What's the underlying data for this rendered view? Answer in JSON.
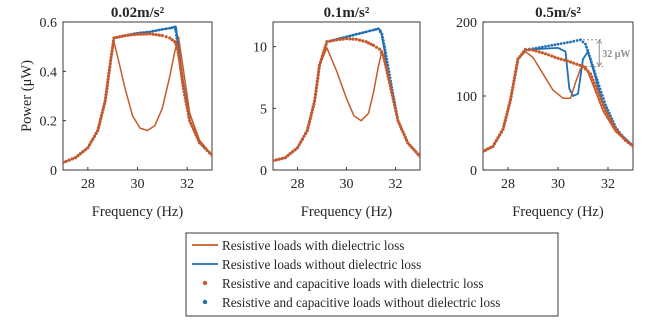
{
  "colors": {
    "with_loss": "#C75A2C",
    "without_loss": "#1F6FB4",
    "axis": "#262626",
    "annotation": "#8C8C8C"
  },
  "legend": [
    {
      "label": "Resistive loads with dielectric loss",
      "style": "line",
      "color": "#C75A2C"
    },
    {
      "label": "Resistive loads without dielectric loss",
      "style": "line",
      "color": "#1F6FB4"
    },
    {
      "label": "Resistive and capacitive loads with dielectric loss",
      "style": "dot",
      "color": "#C75A2C"
    },
    {
      "label": "Resistive and capacitive loads without dielectric loss",
      "style": "dot",
      "color": "#1F6FB4"
    }
  ],
  "chart_data": [
    {
      "type": "line",
      "title": "0.02m/s²",
      "xlabel": "Frequency (Hz)",
      "ylabel": "Power (μW)",
      "xlim": [
        27,
        33
      ],
      "ylim": [
        0,
        0.6
      ],
      "xticks": [
        "28",
        "30",
        "32"
      ],
      "xtick_values": [
        28,
        30,
        32
      ],
      "yticks": [
        "0",
        "0.2",
        "0.4",
        "0.6"
      ],
      "ytick_values": [
        0,
        0.2,
        0.4,
        0.6
      ],
      "series": [
        {
          "name": "Resistive loads with dielectric loss",
          "x": [
            27.0,
            27.5,
            28.0,
            28.4,
            28.7,
            28.9,
            29.05,
            29.2,
            29.5,
            29.8,
            30.1,
            30.4,
            30.7,
            31.0,
            31.3,
            31.5,
            31.65,
            31.8,
            32.1,
            32.5,
            33.0
          ],
          "y": [
            0.03,
            0.05,
            0.09,
            0.16,
            0.28,
            0.43,
            0.52,
            0.46,
            0.33,
            0.22,
            0.17,
            0.16,
            0.18,
            0.25,
            0.38,
            0.48,
            0.54,
            0.44,
            0.23,
            0.12,
            0.06
          ]
        },
        {
          "name": "Resistive loads without dielectric loss",
          "x": [
            27.0,
            27.5,
            28.0,
            28.4,
            28.7,
            28.9,
            29.05,
            29.5,
            30.0,
            30.5,
            31.0,
            31.3,
            31.5,
            31.55,
            31.65,
            31.8,
            32.1,
            32.5,
            33.0
          ],
          "y": [
            0.03,
            0.05,
            0.09,
            0.16,
            0.28,
            0.43,
            0.535,
            0.545,
            0.555,
            0.56,
            0.57,
            0.575,
            0.58,
            0.58,
            0.5,
            0.38,
            0.2,
            0.11,
            0.06
          ]
        },
        {
          "name": "Resistive and capacitive loads with dielectric loss",
          "x": [
            27.0,
            27.5,
            28.0,
            28.4,
            28.7,
            28.9,
            29.05,
            29.5,
            30.0,
            30.5,
            31.0,
            31.3,
            31.5,
            31.6,
            31.7,
            31.85,
            32.1,
            32.5,
            33.0
          ],
          "y": [
            0.03,
            0.05,
            0.09,
            0.16,
            0.28,
            0.43,
            0.535,
            0.545,
            0.55,
            0.552,
            0.545,
            0.535,
            0.52,
            0.5,
            0.44,
            0.33,
            0.2,
            0.11,
            0.06
          ]
        },
        {
          "name": "Resistive and capacitive loads without dielectric loss",
          "x": [
            27.0,
            27.5,
            28.0,
            28.4,
            28.7,
            28.9,
            29.05,
            29.5,
            30.0,
            30.5,
            31.0,
            31.3,
            31.5,
            31.55,
            31.65,
            31.8,
            32.1,
            32.5,
            33.0
          ],
          "y": [
            0.03,
            0.05,
            0.09,
            0.16,
            0.28,
            0.43,
            0.535,
            0.545,
            0.555,
            0.56,
            0.57,
            0.575,
            0.58,
            0.56,
            0.48,
            0.37,
            0.2,
            0.11,
            0.06
          ]
        }
      ]
    },
    {
      "type": "line",
      "title": "0.1m/s²",
      "xlabel": "Frequency (Hz)",
      "ylabel": "",
      "xlim": [
        27,
        33
      ],
      "ylim": [
        0,
        12
      ],
      "xticks": [
        "28",
        "30",
        "32"
      ],
      "xtick_values": [
        28,
        30,
        32
      ],
      "yticks": [
        "0",
        "5",
        "10"
      ],
      "ytick_values": [
        0,
        5,
        10
      ],
      "series": [
        {
          "name": "Resistive loads with dielectric loss",
          "x": [
            27.0,
            27.5,
            28.0,
            28.4,
            28.7,
            28.9,
            29.2,
            29.6,
            30.0,
            30.3,
            30.6,
            30.9,
            31.1,
            31.3,
            31.45,
            31.7,
            32.1,
            32.5,
            33.0
          ],
          "y": [
            0.75,
            1.0,
            1.8,
            3.2,
            5.6,
            8.5,
            9.9,
            8.0,
            5.8,
            4.4,
            4.0,
            4.6,
            6.3,
            8.4,
            9.7,
            7.6,
            4.0,
            2.2,
            1.1
          ]
        },
        {
          "name": "Resistive loads without dielectric loss",
          "x": [
            27.0,
            27.5,
            28.0,
            28.4,
            28.7,
            28.9,
            29.2,
            29.6,
            30.0,
            30.4,
            30.8,
            31.1,
            31.3,
            31.4,
            31.55,
            31.7,
            32.1,
            32.5,
            33.0
          ],
          "y": [
            0.75,
            1.0,
            1.8,
            3.2,
            5.6,
            8.5,
            10.4,
            10.6,
            10.8,
            11.0,
            11.2,
            11.35,
            11.45,
            11.3,
            9.7,
            7.6,
            4.0,
            2.2,
            1.1
          ]
        },
        {
          "name": "Resistive and capacitive loads with dielectric loss",
          "x": [
            27.0,
            27.5,
            28.0,
            28.4,
            28.7,
            28.9,
            29.2,
            29.6,
            30.0,
            30.4,
            30.8,
            31.1,
            31.35,
            31.5,
            31.7,
            32.1,
            32.5,
            33.0
          ],
          "y": [
            0.75,
            1.0,
            1.8,
            3.2,
            5.6,
            8.5,
            10.4,
            10.55,
            10.65,
            10.6,
            10.4,
            10.1,
            9.8,
            9.3,
            7.6,
            4.0,
            2.2,
            1.1
          ]
        },
        {
          "name": "Resistive and capacitive loads without dielectric loss",
          "x": [
            27.0,
            27.5,
            28.0,
            28.4,
            28.7,
            28.9,
            29.2,
            29.6,
            30.0,
            30.4,
            30.8,
            31.1,
            31.3,
            31.45,
            31.6,
            31.8,
            32.1,
            32.5,
            33.0
          ],
          "y": [
            0.75,
            1.0,
            1.8,
            3.2,
            5.6,
            8.5,
            10.4,
            10.6,
            10.8,
            11.0,
            11.2,
            11.35,
            11.45,
            11.0,
            9.5,
            7.2,
            4.0,
            2.2,
            1.1
          ]
        }
      ]
    },
    {
      "type": "line",
      "title": "0.5m/s²",
      "xlabel": "Frequency (Hz)",
      "ylabel": "",
      "xlim": [
        27,
        33
      ],
      "ylim": [
        0,
        200
      ],
      "xticks": [
        "28",
        "30",
        "32"
      ],
      "xtick_values": [
        28,
        30,
        32
      ],
      "yticks": [
        "0",
        "100",
        "200"
      ],
      "ytick_values": [
        0,
        100,
        200
      ],
      "annotation": "32 μW",
      "series": [
        {
          "name": "Resistive loads with dielectric loss",
          "x": [
            27.0,
            27.4,
            27.8,
            28.1,
            28.4,
            28.7,
            29.0,
            29.4,
            29.8,
            30.2,
            30.5,
            30.7,
            30.9,
            31.1,
            31.4,
            31.8,
            32.3,
            33.0
          ],
          "y": [
            25,
            32,
            55,
            95,
            150,
            160,
            152,
            130,
            108,
            97,
            97,
            118,
            137,
            140,
            115,
            80,
            52,
            32
          ]
        },
        {
          "name": "Resistive loads without dielectric loss",
          "x": [
            27.0,
            27.4,
            27.8,
            28.1,
            28.4,
            28.7,
            29.0,
            29.5,
            30.0,
            30.3,
            30.45,
            30.6,
            30.8,
            31.0,
            31.2,
            31.5,
            31.8,
            32.3,
            33.0
          ],
          "y": [
            25,
            32,
            55,
            95,
            150,
            162,
            163,
            164,
            165,
            160,
            110,
            100,
            103,
            150,
            160,
            125,
            88,
            55,
            33
          ]
        },
        {
          "name": "Resistive and capacitive loads with dielectric loss",
          "x": [
            27.0,
            27.4,
            27.8,
            28.1,
            28.4,
            28.7,
            29.0,
            29.5,
            30.0,
            30.5,
            31.0,
            31.3,
            31.6,
            31.9,
            32.3,
            32.7,
            33.0
          ],
          "y": [
            25,
            32,
            55,
            95,
            150,
            163,
            162,
            157,
            151,
            146,
            140,
            130,
            105,
            80,
            55,
            40,
            32
          ]
        },
        {
          "name": "Resistive and capacitive loads without dielectric loss",
          "x": [
            27.0,
            27.4,
            27.8,
            28.1,
            28.4,
            28.7,
            29.0,
            29.5,
            30.0,
            30.5,
            30.9,
            31.1,
            31.3,
            31.6,
            31.9,
            32.3,
            32.7,
            33.0
          ],
          "y": [
            25,
            32,
            55,
            95,
            150,
            163,
            164,
            167,
            170,
            173,
            176,
            170,
            150,
            118,
            88,
            58,
            40,
            33
          ]
        }
      ]
    }
  ]
}
